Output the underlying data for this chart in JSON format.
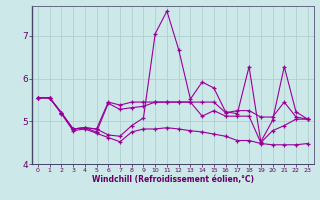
{
  "xlabel": "Windchill (Refroidissement éolien,°C)",
  "bg_color": "#cce8e8",
  "grid_color": "#aacccc",
  "line_color": "#990099",
  "xlim": [
    -0.5,
    23.5
  ],
  "ylim": [
    4.0,
    7.7
  ],
  "yticks": [
    4,
    5,
    6,
    7
  ],
  "xtick_labels": [
    "0",
    "1",
    "2",
    "3",
    "4",
    "5",
    "6",
    "7",
    "8",
    "9",
    "10",
    "11",
    "12",
    "13",
    "14",
    "15",
    "16",
    "17",
    "18",
    "19",
    "20",
    "21",
    "22",
    "23"
  ],
  "series": [
    [
      5.55,
      5.55,
      5.2,
      4.82,
      4.85,
      4.82,
      5.45,
      5.38,
      5.45,
      5.45,
      5.45,
      5.45,
      5.45,
      5.45,
      5.45,
      5.45,
      5.2,
      5.25,
      5.25,
      5.1,
      5.1,
      5.45,
      5.1,
      5.05
    ],
    [
      5.55,
      5.55,
      5.2,
      4.82,
      4.85,
      4.75,
      5.42,
      5.28,
      5.32,
      5.35,
      5.45,
      5.45,
      5.45,
      5.45,
      5.12,
      5.25,
      5.12,
      5.12,
      5.12,
      4.5,
      4.78,
      4.9,
      5.05,
      5.05
    ],
    [
      5.55,
      5.55,
      5.2,
      4.82,
      4.85,
      4.82,
      4.68,
      4.65,
      4.9,
      5.08,
      7.05,
      7.58,
      6.68,
      5.52,
      5.92,
      5.78,
      5.22,
      5.18,
      6.28,
      4.52,
      5.02,
      6.28,
      5.22,
      5.05
    ],
    [
      5.55,
      5.55,
      5.18,
      4.78,
      4.82,
      4.72,
      4.62,
      4.52,
      4.75,
      4.82,
      4.82,
      4.85,
      4.82,
      4.78,
      4.75,
      4.7,
      4.65,
      4.55,
      4.55,
      4.48,
      4.45,
      4.45,
      4.45,
      4.48
    ]
  ]
}
